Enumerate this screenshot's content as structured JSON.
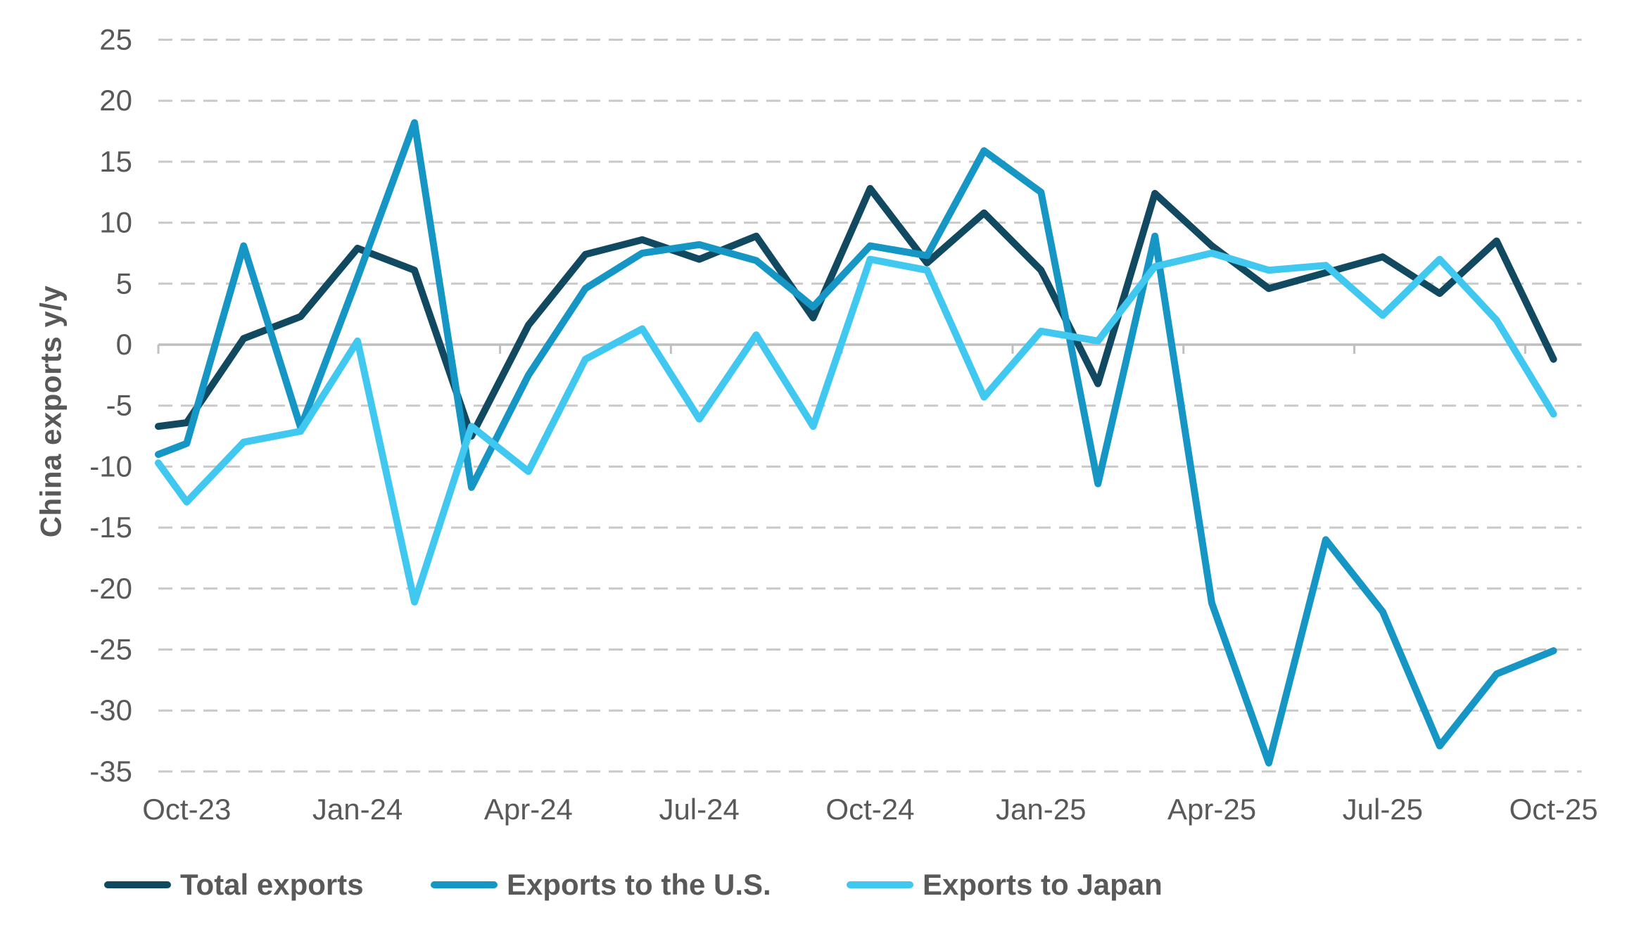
{
  "chart_data": {
    "type": "line",
    "title": "",
    "ylabel": "China exports y/y",
    "xlabel": "",
    "ylim": [
      -35,
      25
    ],
    "ytick_step": 5,
    "yticks": [
      25,
      20,
      15,
      10,
      5,
      0,
      -5,
      -10,
      -15,
      -20,
      -25,
      -30,
      -35
    ],
    "grid": "horizontal-dashed",
    "legend_position": "bottom",
    "categories": [
      "Oct-23",
      "Nov-23",
      "Dec-23",
      "Jan-24",
      "Feb-24",
      "Mar-24",
      "Apr-24",
      "May-24",
      "Jun-24",
      "Jul-24",
      "Aug-24",
      "Sep-24",
      "Oct-24",
      "Nov-24",
      "Dec-24",
      "Jan-25",
      "Feb-25",
      "Mar-25",
      "Apr-25",
      "May-25",
      "Jun-25",
      "Jul-25",
      "Aug-25",
      "Sep-25",
      "Oct-25"
    ],
    "x_axis_labels": [
      "Oct-23",
      "Jan-24",
      "Apr-24",
      "Jul-24",
      "Oct-24",
      "Jan-25",
      "Apr-25",
      "Jul-25",
      "Oct-25"
    ],
    "x_label_every_n_months": 3,
    "series": [
      {
        "name": "Total exports",
        "color": "#114a60",
        "edge_value": -6.7,
        "values": [
          -6.4,
          0.5,
          2.3,
          7.9,
          6.1,
          -7.5,
          1.6,
          7.4,
          8.6,
          7.0,
          8.9,
          2.2,
          12.8,
          6.7,
          10.8,
          6.1,
          -3.2,
          12.4,
          8.1,
          4.6,
          5.9,
          7.2,
          4.2,
          8.5,
          -1.2
        ]
      },
      {
        "name": "Exports to the U.S.",
        "color": "#1596c4",
        "edge_value": -9.0,
        "values": [
          -8.1,
          8.1,
          -6.8,
          5.5,
          18.2,
          -11.7,
          -2.5,
          4.6,
          7.5,
          8.2,
          6.9,
          3.1,
          8.1,
          7.3,
          15.9,
          12.5,
          -11.4,
          8.9,
          -21.2,
          -34.3,
          -16.0,
          -21.9,
          -32.9,
          -27.0,
          -25.1
        ]
      },
      {
        "name": "Exports to Japan",
        "color": "#41c8f1",
        "edge_value": -9.7,
        "values": [
          -12.9,
          -8.0,
          -7.1,
          0.3,
          -21.1,
          -6.7,
          -10.4,
          -1.2,
          1.3,
          -6.1,
          0.8,
          -6.7,
          7.0,
          6.1,
          -4.3,
          1.1,
          0.3,
          6.4,
          7.5,
          6.1,
          6.5,
          2.4,
          7.0,
          2.0,
          -5.7
        ]
      }
    ],
    "colors": {
      "gridline": "#c9c9c9",
      "zero_axis": "#bfbfbf",
      "tick_label": "#595959",
      "background": "#ffffff"
    }
  }
}
